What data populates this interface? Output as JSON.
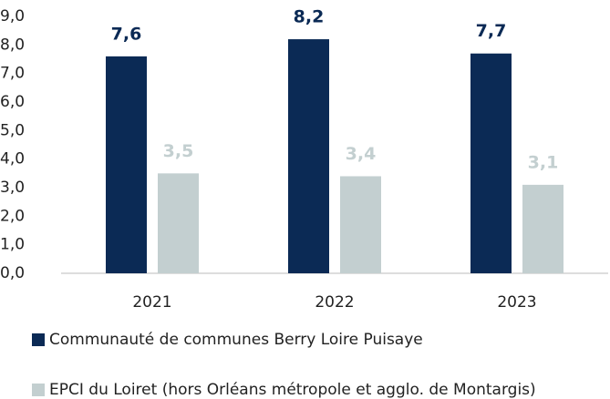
{
  "chart_data": {
    "type": "bar",
    "categories": [
      "2021",
      "2022",
      "2023"
    ],
    "series": [
      {
        "name": "Communauté de communes Berry Loire Puisaye",
        "color": "#0b2a55",
        "values": [
          7.6,
          8.2,
          7.7
        ],
        "value_labels": [
          "7,6",
          "8,2",
          "7,7"
        ]
      },
      {
        "name": "EPCI du Loiret (hors Orléans métropole et agglo. de Montargis)",
        "color": "#c3cfd0",
        "values": [
          3.5,
          3.4,
          3.1
        ],
        "value_labels": [
          "3,5",
          "3,4",
          "3,1"
        ]
      }
    ],
    "ylim": [
      0,
      9
    ],
    "yticks": [
      {
        "value": 0,
        "label": "0,0"
      },
      {
        "value": 1,
        "label": "1,0"
      },
      {
        "value": 2,
        "label": "2,0"
      },
      {
        "value": 3,
        "label": "3,0"
      },
      {
        "value": 4,
        "label": "4,0"
      },
      {
        "value": 5,
        "label": "5,0"
      },
      {
        "value": 6,
        "label": "6,0"
      },
      {
        "value": 7,
        "label": "7,0"
      },
      {
        "value": 8,
        "label": "8,0"
      },
      {
        "value": 9,
        "label": "9,0"
      }
    ],
    "grid": false,
    "legend": "bottom"
  }
}
